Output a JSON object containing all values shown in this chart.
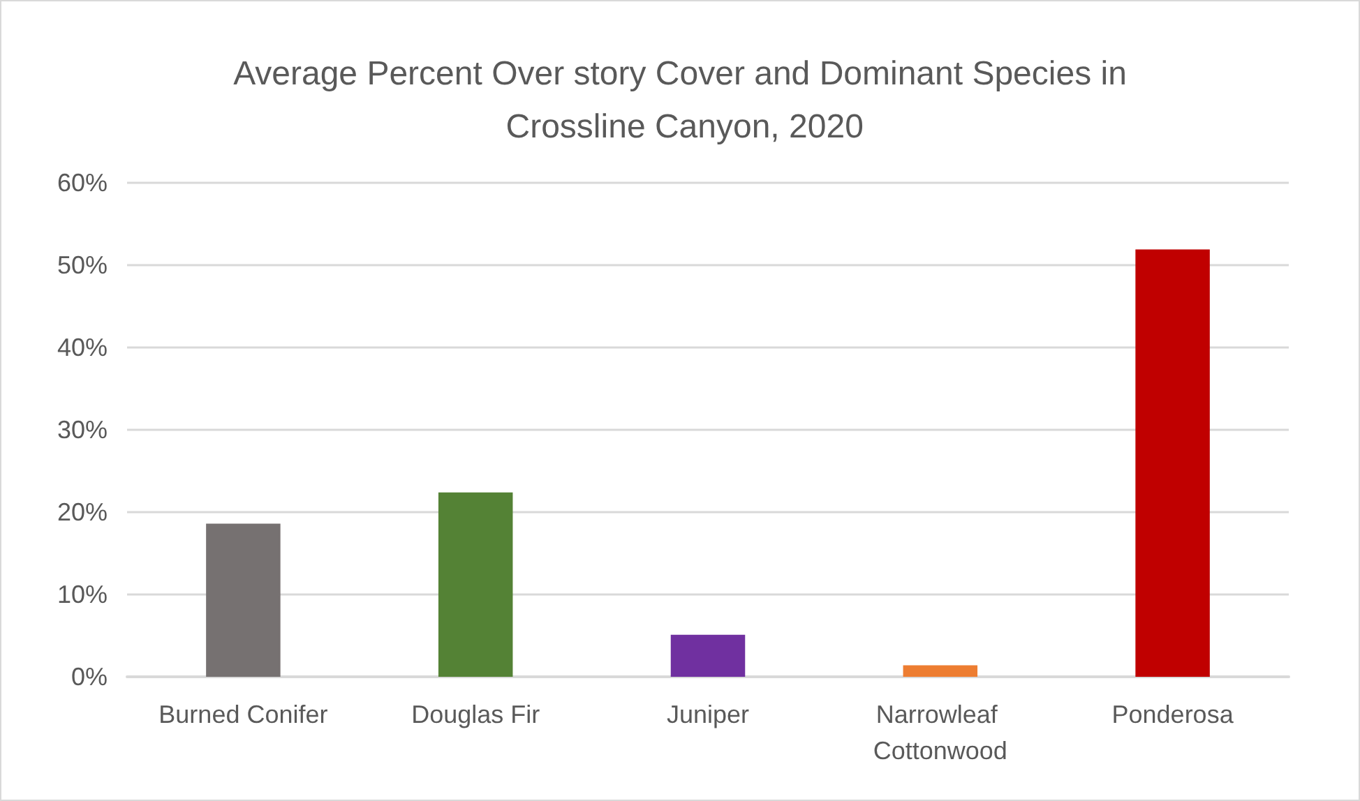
{
  "chart_data": {
    "type": "bar",
    "title": "Average Percent Over story Cover and Dominant Species in Crossline Canyon, 2020",
    "categories": [
      "Burned Conifer",
      "Douglas Fir",
      "Juniper",
      "Narrowleaf Cottonwood",
      "Ponderosa"
    ],
    "values": [
      18.6,
      22.4,
      5.1,
      1.4,
      51.9
    ],
    "colors": [
      "#767171",
      "#548235",
      "#7030a0",
      "#ed7d31",
      "#c00000"
    ],
    "ylim": [
      0,
      60
    ],
    "yticks": [
      {
        "value": 0,
        "label": "0%"
      },
      {
        "value": 10,
        "label": "10%"
      },
      {
        "value": 20,
        "label": "20%"
      },
      {
        "value": 30,
        "label": "30%"
      },
      {
        "value": 40,
        "label": "40%"
      },
      {
        "value": 50,
        "label": "50%"
      },
      {
        "value": 60,
        "label": "60%"
      }
    ],
    "grid": "y"
  }
}
